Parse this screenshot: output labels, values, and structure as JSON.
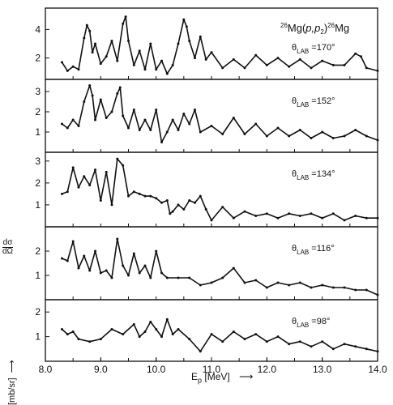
{
  "chart_data": {
    "type": "line",
    "title": "26Mg(p,p2)26Mg",
    "title_parts": {
      "pre_sup": "26",
      "main": "Mg(",
      "p1": "p,p",
      "sub": "2",
      "close": ")",
      "post_sup": "26",
      "post": "Mg"
    },
    "xlabel": "Ep",
    "xlabel_parts": {
      "main": "E",
      "sub": "p",
      "unit": "[MeV]"
    },
    "ylabel": "dσ/dΩ [mb/sr]",
    "ylabel_parts": {
      "frac_num": "dσ",
      "frac_den": "dΩ",
      "unit": "[mb/sr]"
    },
    "xlim": [
      8.0,
      14.0
    ],
    "x_ticks": [
      "8.0",
      "9.0",
      "10.0",
      "11.0",
      "12.0",
      "13.0",
      "14.0"
    ],
    "grid": false,
    "panels": [
      {
        "angle_label": "θLAB =170°",
        "angle_parts": {
          "sym": "θ",
          "sub": "LAB",
          "val": "=170°"
        },
        "ylim": [
          0.5,
          5.5
        ],
        "y_ticks": [
          2,
          4
        ],
        "x": [
          8.3,
          8.4,
          8.5,
          8.6,
          8.7,
          8.75,
          8.8,
          8.85,
          8.9,
          9.0,
          9.1,
          9.2,
          9.3,
          9.4,
          9.45,
          9.5,
          9.6,
          9.7,
          9.8,
          9.9,
          10.0,
          10.1,
          10.2,
          10.3,
          10.4,
          10.5,
          10.55,
          10.6,
          10.7,
          10.8,
          10.9,
          11.0,
          11.2,
          11.4,
          11.6,
          11.8,
          12.0,
          12.2,
          12.4,
          12.6,
          12.8,
          13.0,
          13.2,
          13.4,
          13.6,
          13.7,
          13.8,
          14.0
        ],
        "values": [
          1.7,
          1.1,
          1.4,
          1.2,
          3.4,
          4.3,
          3.9,
          2.4,
          3.0,
          1.6,
          2.1,
          3.2,
          1.8,
          4.4,
          4.9,
          3.2,
          1.5,
          2.5,
          1.2,
          3.0,
          1.2,
          1.8,
          0.9,
          1.5,
          3.0,
          4.7,
          4.2,
          3.2,
          2.0,
          3.5,
          1.9,
          2.4,
          1.3,
          1.9,
          1.3,
          2.2,
          1.5,
          2.0,
          1.4,
          1.9,
          1.3,
          1.8,
          1.5,
          1.5,
          2.3,
          2.1,
          1.3,
          1.1
        ]
      },
      {
        "angle_label": "θLAB =152°",
        "angle_parts": {
          "sym": "θ",
          "sub": "LAB",
          "val": "=152°"
        },
        "ylim": [
          0.0,
          3.6
        ],
        "y_ticks": [
          1,
          2,
          3
        ],
        "x": [
          8.3,
          8.4,
          8.5,
          8.6,
          8.7,
          8.8,
          8.85,
          8.9,
          9.0,
          9.1,
          9.2,
          9.3,
          9.35,
          9.4,
          9.5,
          9.6,
          9.7,
          9.8,
          9.9,
          10.0,
          10.1,
          10.2,
          10.3,
          10.4,
          10.5,
          10.6,
          10.7,
          10.8,
          11.0,
          11.2,
          11.4,
          11.6,
          11.8,
          12.0,
          12.2,
          12.4,
          12.6,
          12.8,
          13.0,
          13.2,
          13.4,
          13.6,
          13.8,
          14.0
        ],
        "values": [
          1.4,
          1.2,
          1.6,
          1.3,
          2.5,
          3.3,
          2.8,
          1.6,
          2.6,
          1.7,
          2.0,
          2.9,
          3.2,
          1.8,
          1.2,
          2.1,
          1.1,
          1.6,
          1.1,
          2.1,
          0.5,
          1.0,
          1.6,
          1.1,
          1.9,
          1.4,
          2.1,
          1.0,
          1.3,
          0.9,
          1.7,
          0.9,
          1.4,
          0.8,
          1.2,
          0.8,
          1.1,
          0.7,
          1.0,
          0.7,
          0.8,
          1.1,
          0.8,
          0.6
        ]
      },
      {
        "angle_label": "θLAB =134°",
        "angle_parts": {
          "sym": "θ",
          "sub": "LAB",
          "val": "=134°"
        },
        "ylim": [
          0.0,
          3.4
        ],
        "y_ticks": [
          1,
          2,
          3
        ],
        "x": [
          8.3,
          8.4,
          8.5,
          8.6,
          8.7,
          8.8,
          8.9,
          9.0,
          9.1,
          9.2,
          9.3,
          9.4,
          9.5,
          9.6,
          9.7,
          9.8,
          9.9,
          10.0,
          10.1,
          10.2,
          10.25,
          10.3,
          10.4,
          10.5,
          10.6,
          10.7,
          10.8,
          10.9,
          11.0,
          11.2,
          11.4,
          11.6,
          11.8,
          12.0,
          12.2,
          12.4,
          12.6,
          12.8,
          13.0,
          13.2,
          13.4,
          13.6,
          13.8,
          14.0
        ],
        "values": [
          1.5,
          1.6,
          2.7,
          1.8,
          2.3,
          1.9,
          2.6,
          1.2,
          2.5,
          1.0,
          3.1,
          2.8,
          1.4,
          1.6,
          1.5,
          1.4,
          1.4,
          1.3,
          1.1,
          1.2,
          0.6,
          0.7,
          1.0,
          0.8,
          1.2,
          1.1,
          1.4,
          0.8,
          0.3,
          0.9,
          0.4,
          0.7,
          0.5,
          0.6,
          0.4,
          0.6,
          0.5,
          0.6,
          0.4,
          0.6,
          0.3,
          0.5,
          0.4,
          0.4
        ]
      },
      {
        "angle_label": "θLAB =116°",
        "angle_parts": {
          "sym": "θ",
          "sub": "LAB",
          "val": "=116°"
        },
        "ylim": [
          0.0,
          3.0
        ],
        "y_ticks": [
          1,
          2
        ],
        "x": [
          8.3,
          8.4,
          8.5,
          8.6,
          8.7,
          8.8,
          8.9,
          9.0,
          9.1,
          9.2,
          9.3,
          9.4,
          9.5,
          9.6,
          9.7,
          9.8,
          9.9,
          10.0,
          10.1,
          10.2,
          10.4,
          10.6,
          10.8,
          11.0,
          11.2,
          11.4,
          11.6,
          11.8,
          12.0,
          12.2,
          12.4,
          12.6,
          12.8,
          13.0,
          13.2,
          13.4,
          13.6,
          13.8,
          14.0
        ],
        "values": [
          1.7,
          1.6,
          2.4,
          1.3,
          1.8,
          1.2,
          2.0,
          1.1,
          1.2,
          0.9,
          2.5,
          1.4,
          1.0,
          1.9,
          1.1,
          1.4,
          0.9,
          2.0,
          1.1,
          0.9,
          0.9,
          0.9,
          0.6,
          0.7,
          0.9,
          1.3,
          0.7,
          0.8,
          0.5,
          0.7,
          0.6,
          0.7,
          0.5,
          0.6,
          0.5,
          0.5,
          0.4,
          0.4,
          0.2
        ]
      },
      {
        "angle_label": "θLAB =98°",
        "angle_parts": {
          "sym": "θ",
          "sub": "LAB",
          "val": "=98°"
        },
        "ylim": [
          0.0,
          2.5
        ],
        "y_ticks": [
          1,
          2
        ],
        "x": [
          8.3,
          8.4,
          8.5,
          8.6,
          8.8,
          9.0,
          9.2,
          9.4,
          9.6,
          9.7,
          9.8,
          9.9,
          10.0,
          10.1,
          10.2,
          10.3,
          10.4,
          10.6,
          10.8,
          11.0,
          11.2,
          11.4,
          11.6,
          11.8,
          12.0,
          12.2,
          12.4,
          12.6,
          12.8,
          13.0,
          13.2,
          13.4,
          13.6,
          13.8,
          14.0
        ],
        "values": [
          1.3,
          1.1,
          1.2,
          0.9,
          0.8,
          0.9,
          1.3,
          1.1,
          1.5,
          1.0,
          1.2,
          1.6,
          1.3,
          1.0,
          1.7,
          1.1,
          1.3,
          0.9,
          0.4,
          1.1,
          0.8,
          1.2,
          0.9,
          1.1,
          0.8,
          1.0,
          0.7,
          0.8,
          0.6,
          0.8,
          0.5,
          0.7,
          0.6,
          0.5,
          0.4
        ]
      }
    ]
  }
}
